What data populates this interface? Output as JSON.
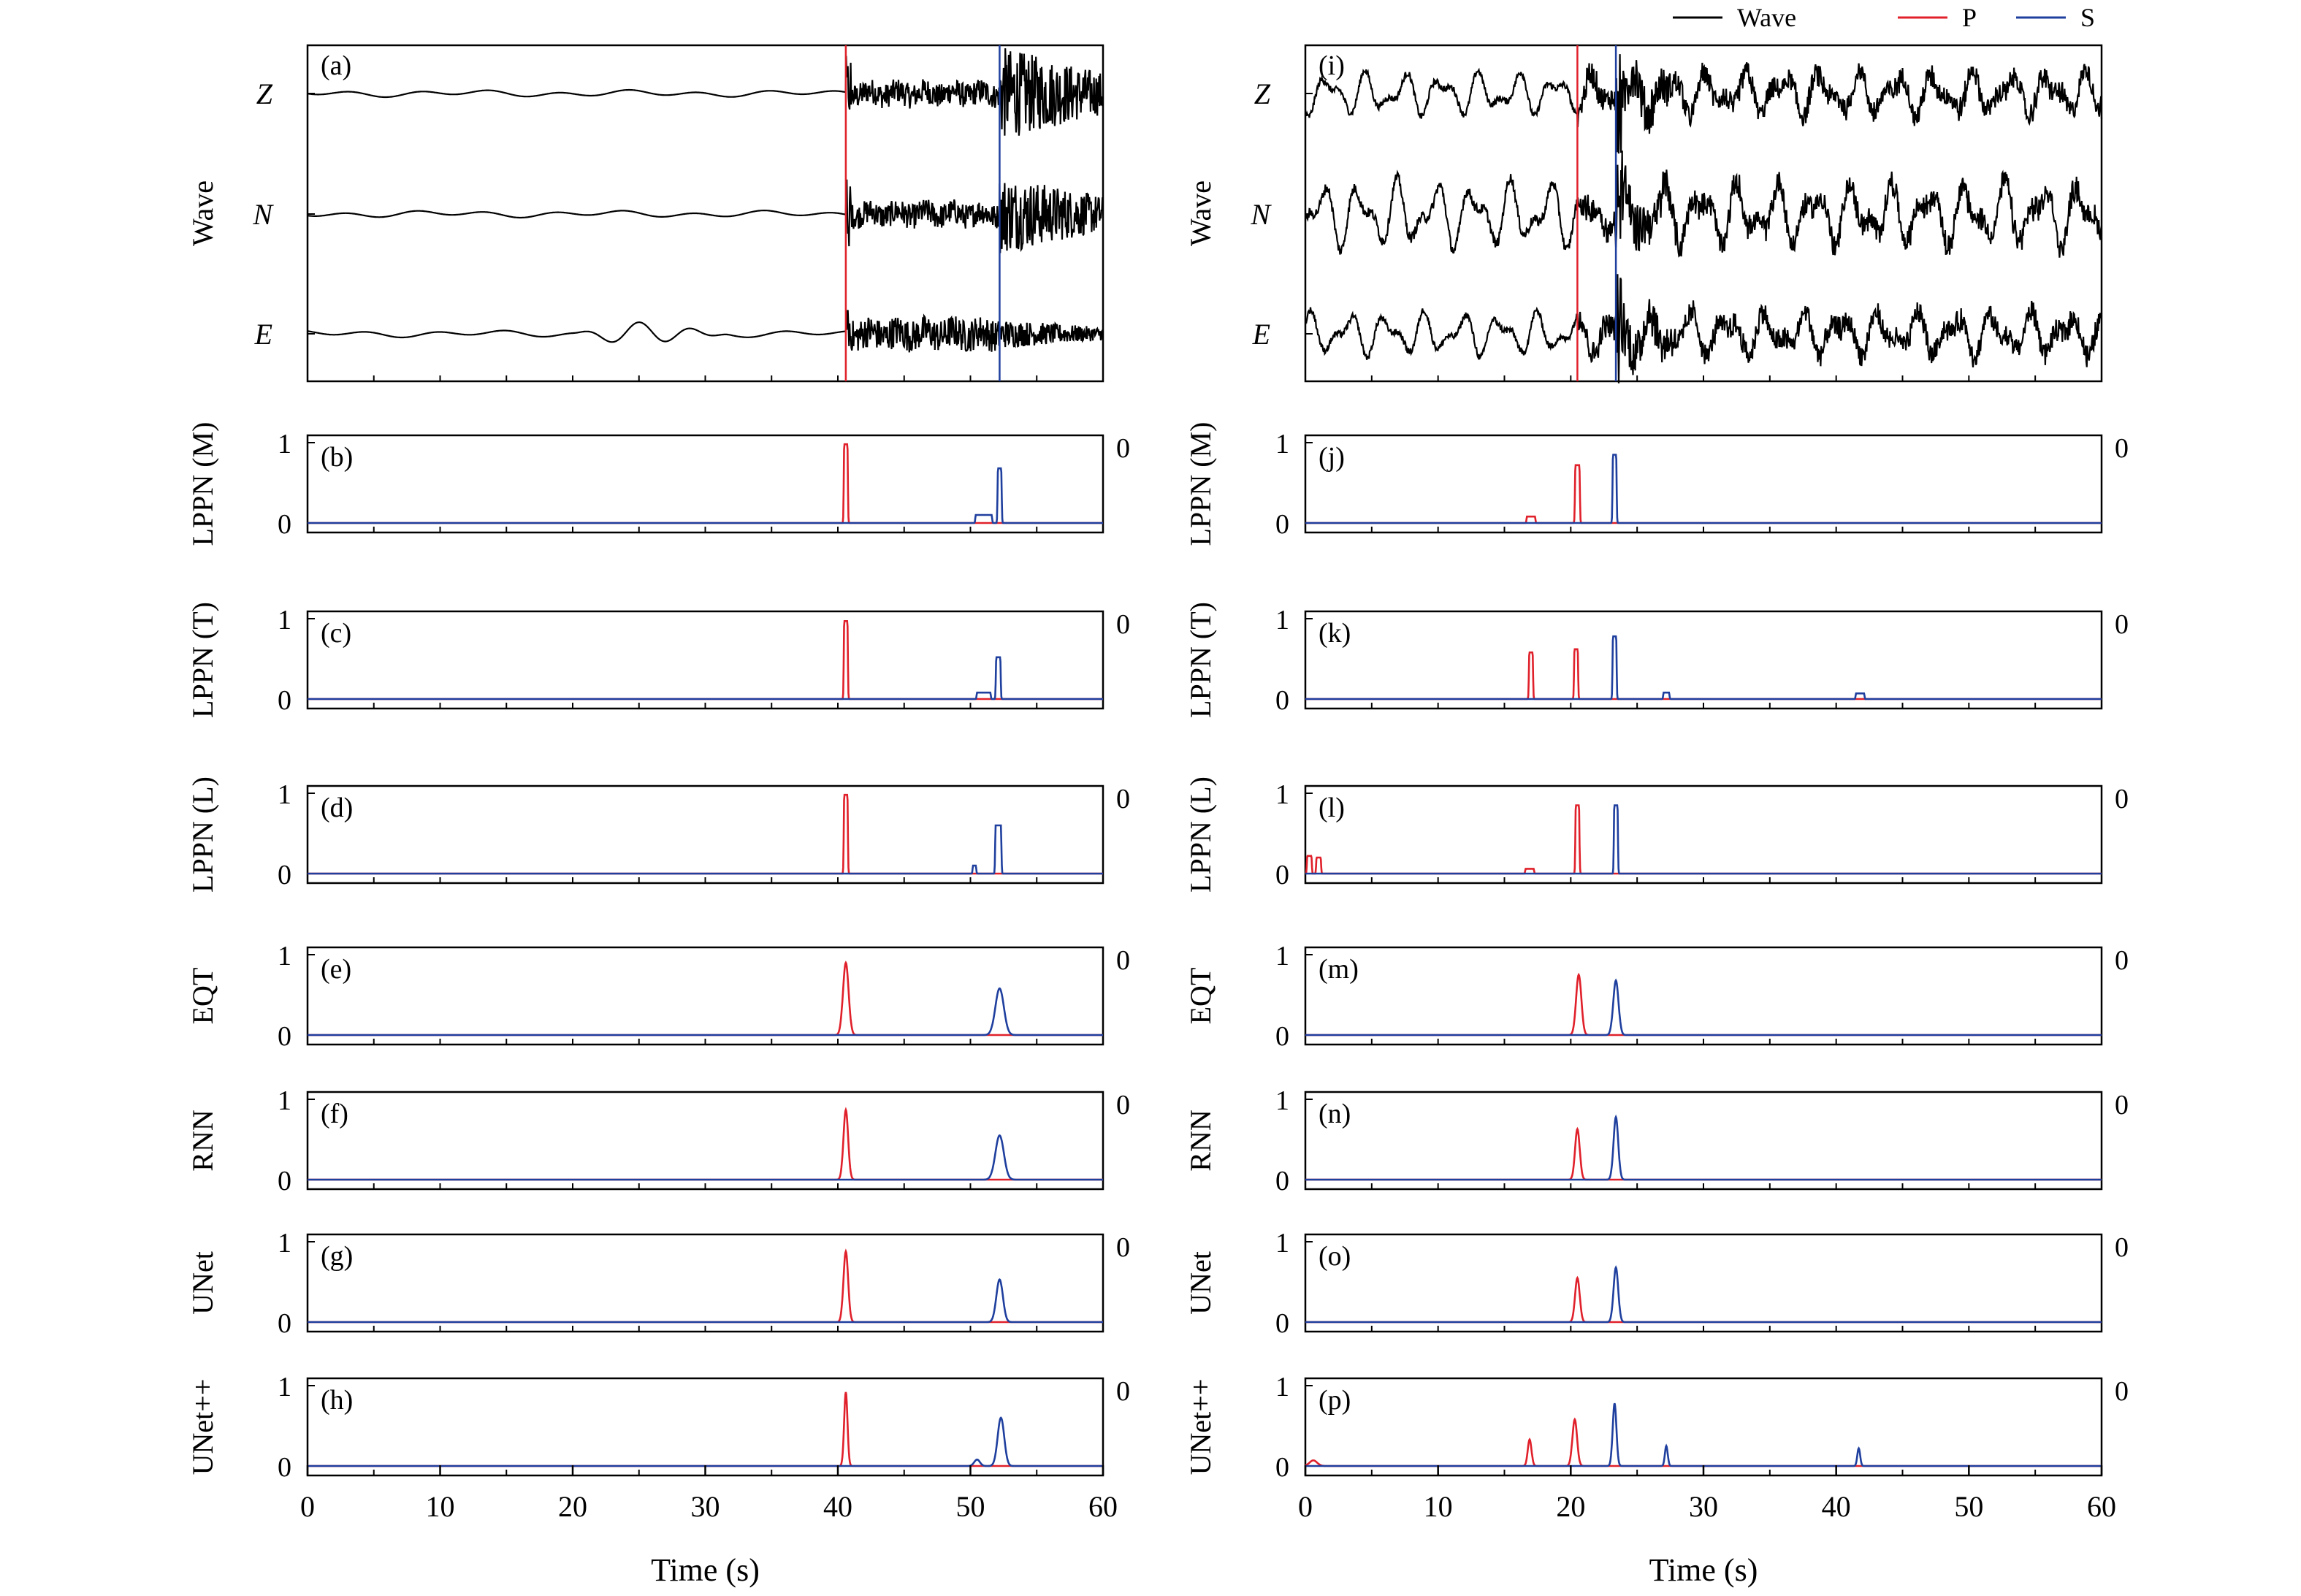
{
  "colors": {
    "wave": "#000000",
    "p": "#e0202a",
    "s": "#1f3f9e",
    "axis": "#000000"
  },
  "legend": [
    {
      "label": "Wave",
      "color": "#000000"
    },
    {
      "label": "P",
      "color": "#e0202a"
    },
    {
      "label": "S",
      "color": "#1f3f9e"
    }
  ],
  "x_axis": {
    "label": "Time (s)",
    "ticks": [
      "0",
      "10",
      "20",
      "30",
      "40",
      "50",
      "60"
    ]
  },
  "wave_panel": {
    "ylabel": "Wave",
    "channels": [
      "Z",
      "N",
      "E"
    ]
  },
  "prob_ticks": {
    "one": "1",
    "zero": "0",
    "right": "0"
  },
  "panels": {
    "left": [
      {
        "id": "(a)"
      },
      {
        "id": "(b)",
        "ylabel": "LPPN (M)"
      },
      {
        "id": "(c)",
        "ylabel": "LPPN (T)"
      },
      {
        "id": "(d)",
        "ylabel": "LPPN (L)"
      },
      {
        "id": "(e)",
        "ylabel": "EQT"
      },
      {
        "id": "(f)",
        "ylabel": "RNN"
      },
      {
        "id": "(g)",
        "ylabel": "UNet"
      },
      {
        "id": "(h)",
        "ylabel": "UNet++"
      }
    ],
    "right": [
      {
        "id": "(i)"
      },
      {
        "id": "(j)",
        "ylabel": "LPPN (M)"
      },
      {
        "id": "(k)",
        "ylabel": "LPPN (T)"
      },
      {
        "id": "(l)",
        "ylabel": "LPPN (L)"
      },
      {
        "id": "(m)",
        "ylabel": "EQT"
      },
      {
        "id": "(n)",
        "ylabel": "RNN"
      },
      {
        "id": "(o)",
        "ylabel": "UNet"
      },
      {
        "id": "(p)",
        "ylabel": "UNet++"
      }
    ]
  },
  "chart_data": [
    {
      "type": "line",
      "column": "left",
      "xlim": [
        0,
        60
      ],
      "ylim": [
        0,
        1
      ],
      "xlabel": "Time (s)",
      "wave": {
        "channels": [
          "Z",
          "N",
          "E"
        ],
        "p_arrival": 40.6,
        "s_arrival": 52.2,
        "pre_event_noise": "smooth low-frequency",
        "style": "noisy"
      },
      "models": [
        {
          "panel": "(b)",
          "name": "LPPN (M)",
          "p_peaks": [
            {
              "t": 40.6,
              "h": 0.98,
              "w": 0.12,
              "shape": "spiky"
            }
          ],
          "s_peaks": [
            {
              "t": 52.2,
              "h": 0.68,
              "w": 0.12,
              "shape": "spiky"
            },
            {
              "t": 51.0,
              "h": 0.1,
              "w": 0.6,
              "shape": "spiky"
            }
          ]
        },
        {
          "panel": "(c)",
          "name": "LPPN (T)",
          "p_peaks": [
            {
              "t": 40.6,
              "h": 0.97,
              "w": 0.12,
              "shape": "spiky"
            }
          ],
          "s_peaks": [
            {
              "t": 52.1,
              "h": 0.52,
              "w": 0.15,
              "shape": "spiky"
            },
            {
              "t": 51.0,
              "h": 0.08,
              "w": 0.5,
              "shape": "spiky"
            }
          ]
        },
        {
          "panel": "(d)",
          "name": "LPPN (L)",
          "p_peaks": [
            {
              "t": 40.6,
              "h": 0.98,
              "w": 0.12,
              "shape": "spiky"
            }
          ],
          "s_peaks": [
            {
              "t": 52.1,
              "h": 0.6,
              "w": 0.2,
              "shape": "spiky"
            },
            {
              "t": 50.3,
              "h": 0.1,
              "w": 0.1,
              "shape": "spiky"
            }
          ]
        },
        {
          "panel": "(e)",
          "name": "EQT",
          "p_peaks": [
            {
              "t": 40.6,
              "h": 0.9,
              "w": 0.3,
              "shape": "smooth"
            }
          ],
          "s_peaks": [
            {
              "t": 52.2,
              "h": 0.58,
              "w": 0.45,
              "shape": "smooth"
            }
          ]
        },
        {
          "panel": "(f)",
          "name": "RNN",
          "p_peaks": [
            {
              "t": 40.6,
              "h": 0.87,
              "w": 0.25,
              "shape": "smooth"
            }
          ],
          "s_peaks": [
            {
              "t": 52.2,
              "h": 0.55,
              "w": 0.45,
              "shape": "smooth"
            }
          ]
        },
        {
          "panel": "(g)",
          "name": "UNet",
          "p_peaks": [
            {
              "t": 40.6,
              "h": 0.88,
              "w": 0.25,
              "shape": "smooth"
            }
          ],
          "s_peaks": [
            {
              "t": 52.2,
              "h": 0.53,
              "w": 0.35,
              "shape": "smooth"
            }
          ]
        },
        {
          "panel": "(h)",
          "name": "UNet++",
          "p_peaks": [
            {
              "t": 40.6,
              "h": 0.92,
              "w": 0.18,
              "shape": "smooth"
            }
          ],
          "s_peaks": [
            {
              "t": 52.3,
              "h": 0.6,
              "w": 0.35,
              "shape": "smooth"
            },
            {
              "t": 50.5,
              "h": 0.08,
              "w": 0.3,
              "shape": "smooth"
            }
          ]
        }
      ]
    },
    {
      "type": "line",
      "column": "right",
      "xlim": [
        0,
        60
      ],
      "ylim": [
        0,
        1
      ],
      "xlabel": "Time (s)",
      "wave": {
        "channels": [
          "Z",
          "N",
          "E"
        ],
        "p_arrival": 20.5,
        "s_arrival": 23.4,
        "pre_event_noise": "large oscillatory",
        "style": "noisy"
      },
      "models": [
        {
          "panel": "(j)",
          "name": "LPPN (M)",
          "p_peaks": [
            {
              "t": 20.5,
              "h": 0.72,
              "w": 0.15,
              "shape": "spiky"
            },
            {
              "t": 17.0,
              "h": 0.08,
              "w": 0.3,
              "shape": "spiky"
            }
          ],
          "s_peaks": [
            {
              "t": 23.3,
              "h": 0.85,
              "w": 0.12,
              "shape": "spiky"
            }
          ]
        },
        {
          "panel": "(k)",
          "name": "LPPN (T)",
          "p_peaks": [
            {
              "t": 17.0,
              "h": 0.58,
              "w": 0.12,
              "shape": "spiky"
            },
            {
              "t": 20.4,
              "h": 0.62,
              "w": 0.12,
              "shape": "spiky"
            }
          ],
          "s_peaks": [
            {
              "t": 23.3,
              "h": 0.78,
              "w": 0.12,
              "shape": "spiky"
            },
            {
              "t": 27.2,
              "h": 0.08,
              "w": 0.2,
              "shape": "spiky"
            },
            {
              "t": 41.8,
              "h": 0.07,
              "w": 0.3,
              "shape": "spiky"
            }
          ]
        },
        {
          "panel": "(l)",
          "name": "LPPN (L)",
          "p_peaks": [
            {
              "t": 20.5,
              "h": 0.85,
              "w": 0.12,
              "shape": "spiky"
            },
            {
              "t": 0.3,
              "h": 0.22,
              "w": 0.15,
              "shape": "spiky"
            },
            {
              "t": 1.0,
              "h": 0.2,
              "w": 0.15,
              "shape": "spiky"
            },
            {
              "t": 16.9,
              "h": 0.06,
              "w": 0.3,
              "shape": "spiky"
            }
          ],
          "s_peaks": [
            {
              "t": 23.4,
              "h": 0.85,
              "w": 0.12,
              "shape": "spiky"
            }
          ]
        },
        {
          "panel": "(m)",
          "name": "EQT",
          "p_peaks": [
            {
              "t": 20.6,
              "h": 0.75,
              "w": 0.28,
              "shape": "smooth"
            }
          ],
          "s_peaks": [
            {
              "t": 23.4,
              "h": 0.68,
              "w": 0.28,
              "shape": "smooth"
            }
          ]
        },
        {
          "panel": "(n)",
          "name": "RNN",
          "p_peaks": [
            {
              "t": 20.5,
              "h": 0.63,
              "w": 0.25,
              "shape": "smooth"
            }
          ],
          "s_peaks": [
            {
              "t": 23.4,
              "h": 0.78,
              "w": 0.25,
              "shape": "smooth"
            }
          ]
        },
        {
          "panel": "(o)",
          "name": "UNet",
          "p_peaks": [
            {
              "t": 20.5,
              "h": 0.55,
              "w": 0.25,
              "shape": "smooth"
            }
          ],
          "s_peaks": [
            {
              "t": 23.4,
              "h": 0.68,
              "w": 0.25,
              "shape": "smooth"
            }
          ]
        },
        {
          "panel": "(p)",
          "name": "UNet++",
          "p_peaks": [
            {
              "t": 16.9,
              "h": 0.33,
              "w": 0.2,
              "shape": "smooth"
            },
            {
              "t": 20.3,
              "h": 0.58,
              "w": 0.25,
              "shape": "smooth"
            },
            {
              "t": 0.6,
              "h": 0.07,
              "w": 0.4,
              "shape": "smooth"
            }
          ],
          "s_peaks": [
            {
              "t": 23.3,
              "h": 0.78,
              "w": 0.2,
              "shape": "smooth"
            },
            {
              "t": 27.2,
              "h": 0.25,
              "w": 0.15,
              "shape": "smooth"
            },
            {
              "t": 41.7,
              "h": 0.22,
              "w": 0.15,
              "shape": "smooth"
            }
          ]
        }
      ]
    }
  ]
}
